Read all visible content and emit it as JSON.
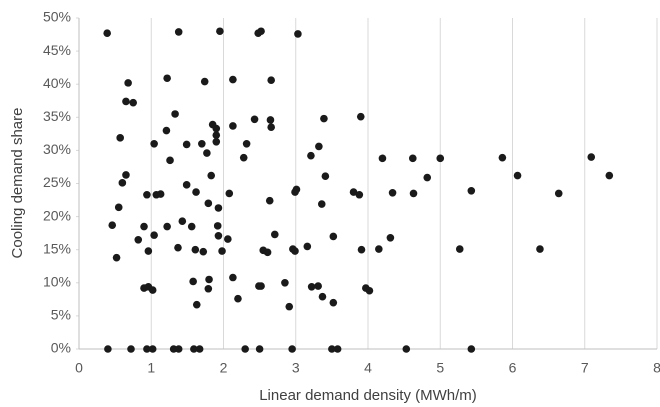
{
  "chart_data": {
    "type": "scatter",
    "x_label": "Linear demand density (MWh/m)",
    "y_label": "Cooling demand share",
    "color": "#1a1a1a",
    "grid": true,
    "xlim": [
      0,
      8
    ],
    "xticks": [
      0,
      1,
      2,
      3,
      4,
      5,
      6,
      7,
      8
    ],
    "ylim": [
      0,
      50
    ],
    "yticks": [
      {
        "value": 0,
        "label": "0%"
      },
      {
        "value": 5,
        "label": "5%"
      },
      {
        "value": 10,
        "label": "10%"
      },
      {
        "value": 15,
        "label": "15%"
      },
      {
        "value": 20,
        "label": "20%"
      },
      {
        "value": 25,
        "label": "25%"
      },
      {
        "value": 30,
        "label": "30%"
      },
      {
        "value": 35,
        "label": "35%"
      },
      {
        "value": 40,
        "label": "40%"
      },
      {
        "value": 45,
        "label": "45%"
      },
      {
        "value": 50,
        "label": "50%"
      }
    ],
    "x": [
      0.4,
      0.72,
      0.94,
      1.02,
      1.31,
      1.38,
      1.59,
      1.67,
      2.3,
      2.5,
      2.95,
      3.5,
      3.58,
      4.53,
      5.43,
      0.39,
      1.38,
      1.95,
      2.48,
      2.52,
      3.03,
      0.68,
      0.65,
      0.75,
      0.57,
      0.65,
      0.6,
      0.55,
      0.46,
      0.52,
      0.82,
      0.9,
      0.94,
      0.96,
      0.9,
      0.96,
      1.02,
      1.04,
      1.07,
      1.13,
      1.04,
      1.22,
      1.21,
      1.33,
      1.26,
      1.22,
      1.37,
      1.43,
      1.49,
      1.49,
      1.56,
      1.58,
      1.63,
      1.61,
      1.62,
      1.7,
      1.74,
      1.72,
      1.77,
      1.79,
      1.8,
      1.79,
      1.83,
      1.85,
      1.9,
      1.9,
      1.9,
      1.92,
      1.93,
      1.93,
      1.98,
      2.06,
      2.08,
      2.13,
      2.13,
      2.13,
      2.2,
      2.28,
      2.32,
      2.43,
      2.49,
      2.52,
      2.55,
      2.61,
      2.64,
      2.65,
      2.66,
      2.66,
      2.71,
      2.85,
      2.91,
      2.96,
      2.99,
      2.99,
      3.01,
      3.16,
      3.21,
      3.22,
      3.31,
      3.32,
      3.36,
      3.37,
      3.39,
      3.41,
      3.52,
      3.52,
      3.8,
      3.88,
      3.9,
      3.91,
      3.97,
      4.02,
      4.15,
      4.2,
      4.31,
      4.34,
      4.62,
      4.63,
      4.82,
      5.0,
      5.27,
      5.43,
      5.86,
      6.07,
      6.38,
      6.64,
      7.09,
      7.34
    ],
    "values": [
      0,
      0,
      0,
      0,
      0,
      0,
      0,
      0,
      0,
      0,
      0,
      0,
      0,
      0,
      0,
      47.7,
      47.9,
      48,
      47.7,
      48,
      47.6,
      40.2,
      37.4,
      37.2,
      31.9,
      26.3,
      25.1,
      21.4,
      18.7,
      13.8,
      16.5,
      18.5,
      23.3,
      14.8,
      9.2,
      9.4,
      8.9,
      17.2,
      23.3,
      23.4,
      31.0,
      40.9,
      33.0,
      35.5,
      28.5,
      18.5,
      15.3,
      19.3,
      24.8,
      30.9,
      18.5,
      10.2,
      6.7,
      15.0,
      23.7,
      31.0,
      40.4,
      14.7,
      29.6,
      22.0,
      10.5,
      9.1,
      26.2,
      33.9,
      33.3,
      32.3,
      31.3,
      18.6,
      17.1,
      21.3,
      14.8,
      16.6,
      23.5,
      33.7,
      40.7,
      10.8,
      7.6,
      28.9,
      31.0,
      34.7,
      9.5,
      9.5,
      14.9,
      14.6,
      22.4,
      34.6,
      33.5,
      40.6,
      17.3,
      10.0,
      6.4,
      15.1,
      14.8,
      23.7,
      24.1,
      15.5,
      29.2,
      9.4,
      9.5,
      30.6,
      21.9,
      7.9,
      34.8,
      26.1,
      7.0,
      17.0,
      23.7,
      23.3,
      35.1,
      15.0,
      9.2,
      8.8,
      15.1,
      28.8,
      16.8,
      23.6,
      28.8,
      23.5,
      25.9,
      28.8,
      15.1,
      23.9,
      28.9,
      26.2,
      15.1,
      23.5,
      29.0,
      26.2
    ]
  }
}
